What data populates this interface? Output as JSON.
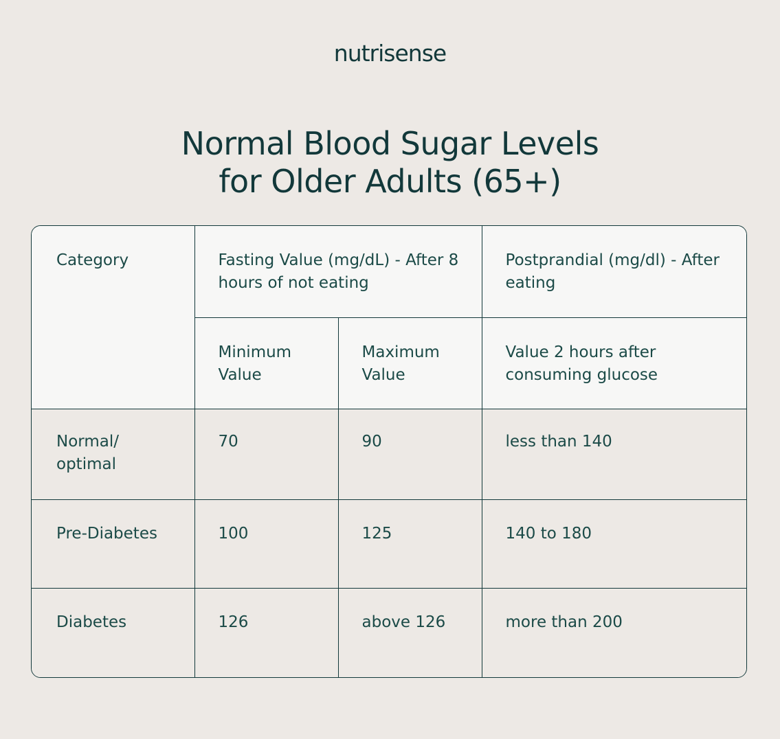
{
  "brand": "nutrisense",
  "title": {
    "line1": "Normal Blood Sugar Levels",
    "line2": "for Older Adults (65+)"
  },
  "table": {
    "header": {
      "category": "Category",
      "fasting": "Fasting Value (mg/dL) - After 8 hours of not eating",
      "postprandial": "Postprandial (mg/dl) - After eating",
      "min": "Minimum Value",
      "max": "Maximum Value",
      "two_hours": "Value 2 hours after consuming glucose"
    },
    "rows": [
      {
        "category": "Normal/ optimal",
        "min": "70",
        "max": "90",
        "post": "less than 140"
      },
      {
        "category": "Pre-Diabetes",
        "min": "100",
        "max": "125",
        "post": "140 to 180"
      },
      {
        "category": "Diabetes",
        "min": "126",
        "max": "above 126",
        "post": "more than 200"
      }
    ]
  }
}
